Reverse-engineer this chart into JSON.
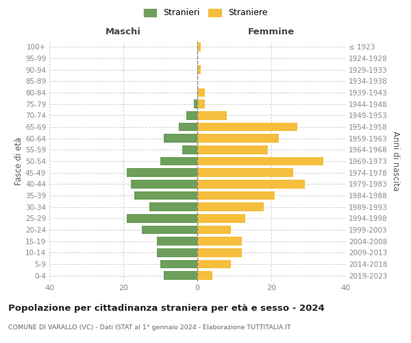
{
  "age_groups": [
    "0-4",
    "5-9",
    "10-14",
    "15-19",
    "20-24",
    "25-29",
    "30-34",
    "35-39",
    "40-44",
    "45-49",
    "50-54",
    "55-59",
    "60-64",
    "65-69",
    "70-74",
    "75-79",
    "80-84",
    "85-89",
    "90-94",
    "95-99",
    "100+"
  ],
  "birth_years": [
    "2019-2023",
    "2014-2018",
    "2009-2013",
    "2004-2008",
    "1999-2003",
    "1994-1998",
    "1989-1993",
    "1984-1988",
    "1979-1983",
    "1974-1978",
    "1969-1973",
    "1964-1968",
    "1959-1963",
    "1954-1958",
    "1949-1953",
    "1944-1948",
    "1939-1943",
    "1934-1938",
    "1929-1933",
    "1924-1928",
    "≤ 1923"
  ],
  "maschi": [
    9,
    10,
    11,
    11,
    15,
    19,
    13,
    17,
    18,
    19,
    10,
    4,
    9,
    5,
    3,
    1,
    0,
    0,
    0,
    0,
    0
  ],
  "femmine": [
    4,
    9,
    12,
    12,
    9,
    13,
    18,
    21,
    29,
    26,
    34,
    19,
    22,
    27,
    8,
    2,
    2,
    0,
    1,
    0,
    1
  ],
  "color_maschi": "#6d9e5a",
  "color_femmine": "#f5be3c",
  "title": "Popolazione per cittadinanza straniera per età e sesso - 2024",
  "subtitle": "COMUNE DI VARALLO (VC) - Dati ISTAT al 1° gennaio 2024 - Elaborazione TUTTITALIA.IT",
  "xlabel_left": "Maschi",
  "xlabel_right": "Femmine",
  "ylabel_left": "Fasce di età",
  "ylabel_right": "Anni di nascita",
  "legend_maschi": "Stranieri",
  "legend_femmine": "Straniere",
  "xlim": 40,
  "background_color": "#ffffff",
  "grid_color": "#cccccc"
}
